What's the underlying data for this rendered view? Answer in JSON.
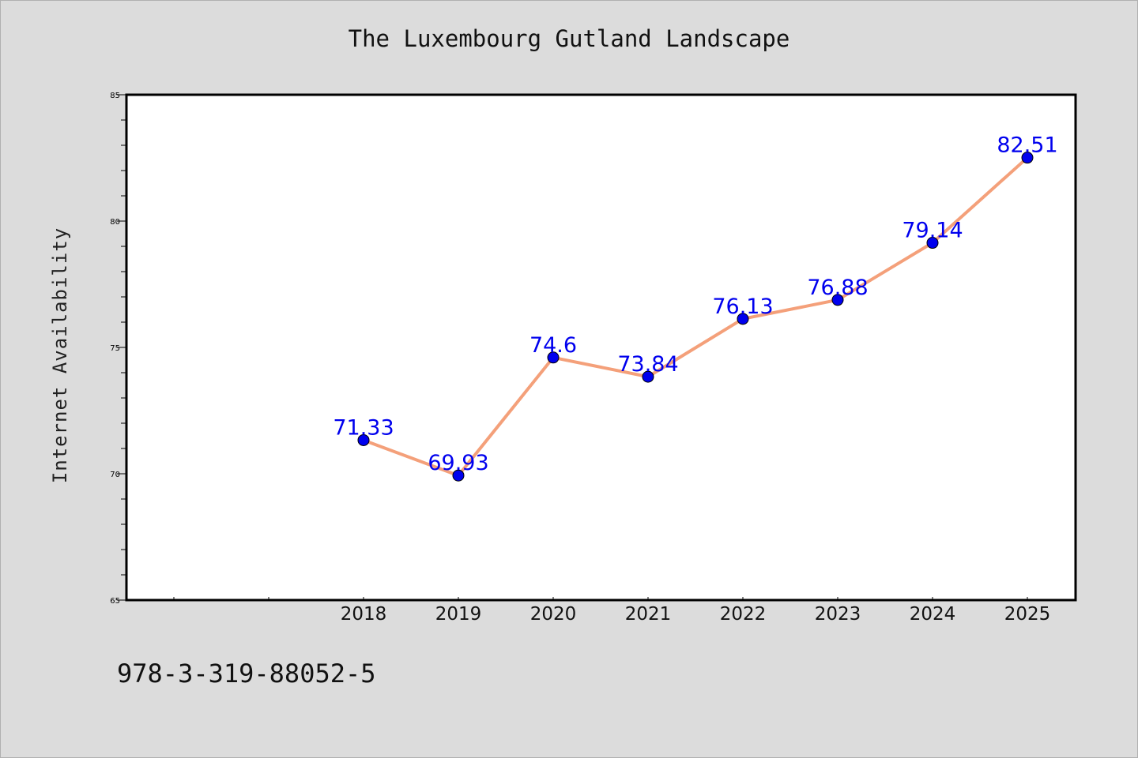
{
  "chart_data": {
    "type": "line",
    "title": "The Luxembourg Gutland Landscape",
    "xlabel": "",
    "ylabel": "Internet Availability",
    "categories": [
      "2018",
      "2019",
      "2020",
      "2021",
      "2022",
      "2023",
      "2024",
      "2025"
    ],
    "series": [
      {
        "values": [
          71.33,
          69.93,
          74.6,
          73.84,
          76.13,
          76.88,
          79.14,
          82.51
        ],
        "data_labels": [
          "71.33",
          "69.93",
          "74.6",
          "73.84",
          "76.13",
          "76.88",
          "79.14",
          "82.51"
        ],
        "line_color": "#f4a07a",
        "marker_color": "#0000ee",
        "label_color": "#0000ee"
      }
    ],
    "ylim": [
      65,
      85
    ],
    "y_ticks": [
      "65",
      "70",
      "75",
      "80",
      "85"
    ],
    "grid": false,
    "legend": "none"
  },
  "footer": {
    "code": "978-3-319-88052-5"
  }
}
